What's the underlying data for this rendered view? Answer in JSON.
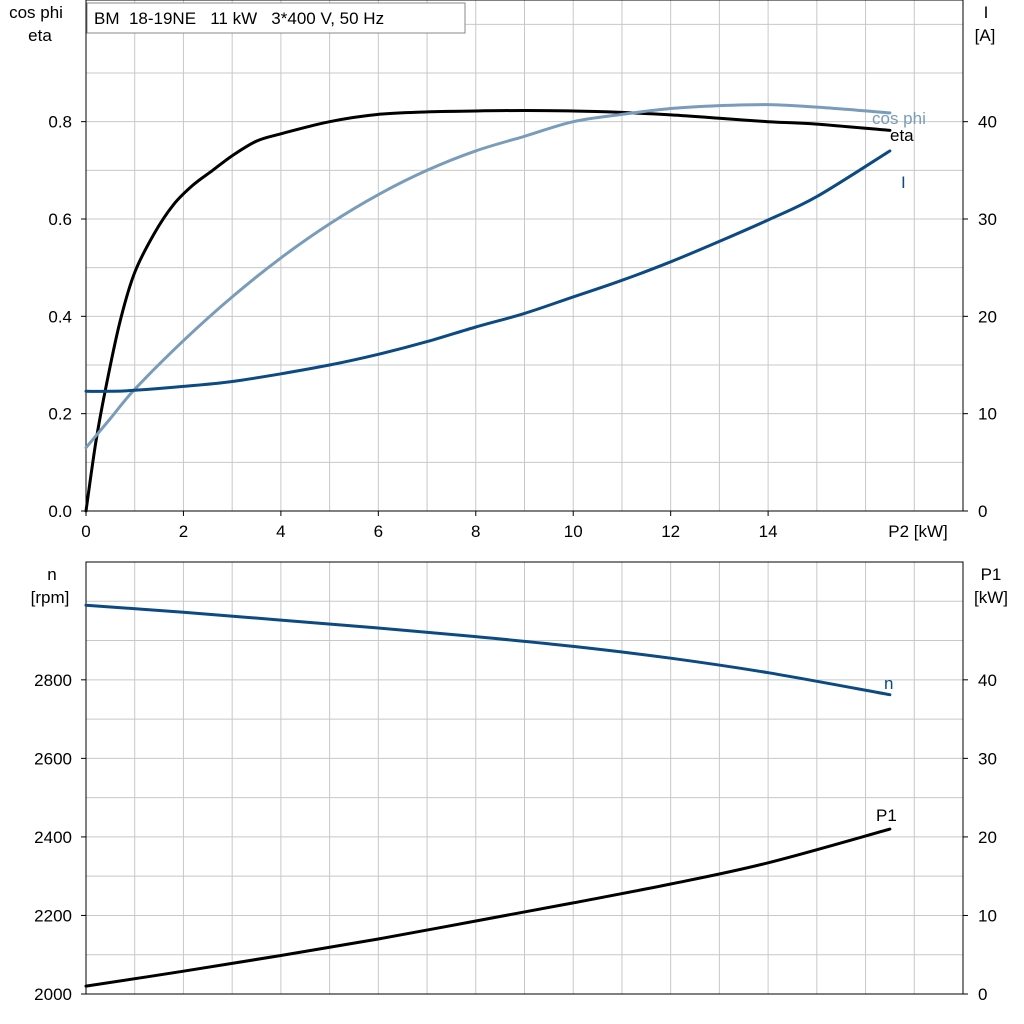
{
  "chart_data": [
    {
      "type": "line",
      "title": "BM  18-19NE   11 kW   3*400 V, 50 Hz",
      "xlabel": "P2 [kW]",
      "ylabel_left": [
        "cos phi",
        "eta"
      ],
      "ylabel_right": [
        "I",
        "[A]"
      ],
      "xlim": [
        0,
        18
      ],
      "ylim_left": [
        0,
        1.05
      ],
      "ylim_right": [
        0,
        52.5
      ],
      "xticks": [
        "0",
        "2",
        "4",
        "6",
        "8",
        "10",
        "12",
        "14"
      ],
      "yticks_left": [
        "0.0",
        "0.2",
        "0.4",
        "0.6",
        "0.8"
      ],
      "yticks_right": [
        "0",
        "10",
        "20",
        "30",
        "40"
      ],
      "grid": true,
      "series": [
        {
          "name": "eta",
          "axis": "left",
          "color": "#000000",
          "x": [
            0,
            0.2,
            0.4,
            0.7,
            1.0,
            1.4,
            1.8,
            2.2,
            2.6,
            3.0,
            3.5,
            4.0,
            5.0,
            6.0,
            7.0,
            8.0,
            9.0,
            10.0,
            11.0,
            12.0,
            13.0,
            14.0,
            15.0,
            16.5
          ],
          "y": [
            0.0,
            0.14,
            0.25,
            0.39,
            0.49,
            0.57,
            0.63,
            0.67,
            0.7,
            0.73,
            0.76,
            0.775,
            0.8,
            0.815,
            0.82,
            0.822,
            0.823,
            0.822,
            0.819,
            0.814,
            0.807,
            0.8,
            0.795,
            0.782
          ]
        },
        {
          "name": "cos phi",
          "axis": "left",
          "color": "#7a9cbb",
          "x": [
            0,
            0.5,
            1.0,
            2.0,
            3.0,
            4.0,
            5.0,
            6.0,
            7.0,
            8.0,
            9.0,
            10.0,
            11.0,
            12.0,
            13.0,
            14.0,
            15.0,
            16.5
          ],
          "y": [
            0.13,
            0.19,
            0.25,
            0.35,
            0.44,
            0.52,
            0.59,
            0.65,
            0.7,
            0.74,
            0.77,
            0.8,
            0.815,
            0.827,
            0.833,
            0.835,
            0.83,
            0.818
          ]
        },
        {
          "name": "I",
          "axis": "right",
          "color": "#0b4a82",
          "x": [
            0,
            0.5,
            1.0,
            2.0,
            3.0,
            4.0,
            5.0,
            6.0,
            7.0,
            8.0,
            9.0,
            10.0,
            11.0,
            12.0,
            13.0,
            14.0,
            15.0,
            16.5
          ],
          "y": [
            12.3,
            12.3,
            12.4,
            12.8,
            13.3,
            14.1,
            15.0,
            16.1,
            17.4,
            18.9,
            20.3,
            22.0,
            23.7,
            25.6,
            27.7,
            29.9,
            32.3,
            37.0
          ]
        }
      ],
      "curve_labels": [
        "cos phi",
        "eta",
        "I"
      ]
    },
    {
      "type": "line",
      "xlim": [
        0,
        18
      ],
      "ylabel_left": [
        "n",
        "[rpm]"
      ],
      "ylabel_right": [
        "P1",
        "[kW]"
      ],
      "ylim_left": [
        2000,
        3100
      ],
      "ylim_right": [
        0,
        55
      ],
      "yticks_left": [
        "2000",
        "2200",
        "2400",
        "2600",
        "2800"
      ],
      "yticks_right": [
        "0",
        "10",
        "20",
        "30",
        "40"
      ],
      "grid": true,
      "series": [
        {
          "name": "n",
          "axis": "left",
          "color": "#0b4a82",
          "x": [
            0,
            2,
            4,
            6,
            8,
            10,
            12,
            14,
            16.5
          ],
          "y": [
            2990,
            2972,
            2952,
            2932,
            2910,
            2885,
            2855,
            2818,
            2762
          ]
        },
        {
          "name": "P1",
          "axis": "right",
          "color": "#000000",
          "x": [
            0,
            2,
            4,
            6,
            8,
            10,
            12,
            14,
            16.5
          ],
          "y": [
            1.0,
            2.9,
            4.9,
            7.0,
            9.3,
            11.6,
            14.0,
            16.7,
            21.0
          ]
        }
      ],
      "curve_labels": [
        "n",
        "P1"
      ]
    }
  ]
}
